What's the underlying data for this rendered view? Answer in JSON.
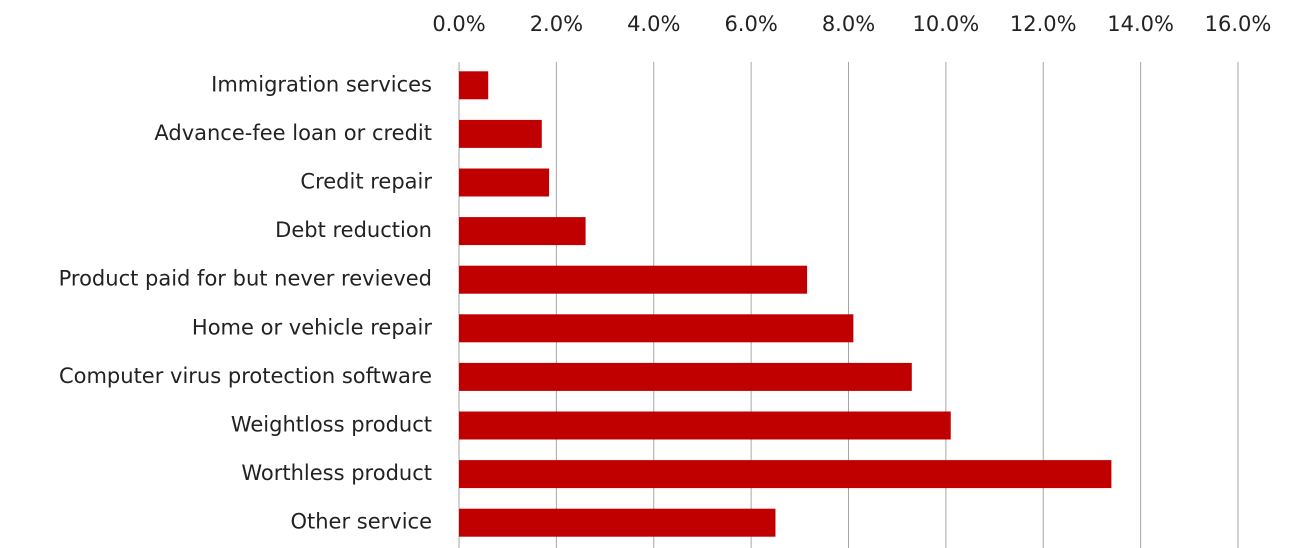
{
  "chart_data": {
    "type": "bar",
    "orientation": "horizontal",
    "categories": [
      "Immigration services",
      "Advance-fee loan or credit",
      "Credit repair",
      "Debt reduction",
      "Product paid for but never revieved",
      "Home or vehicle repair",
      "Computer virus protection software",
      "Weightloss product",
      "Worthless product",
      "Other service"
    ],
    "values": [
      0.6,
      1.7,
      1.85,
      2.6,
      7.15,
      8.1,
      9.3,
      10.1,
      13.4,
      6.5
    ],
    "color": "#c00000",
    "xlim": [
      0,
      16
    ],
    "xticks": [
      {
        "value": 0,
        "label": "0.0%"
      },
      {
        "value": 2,
        "label": "2.0%"
      },
      {
        "value": 4,
        "label": "4.0%"
      },
      {
        "value": 6,
        "label": "6.0%"
      },
      {
        "value": 8,
        "label": "8.0%"
      },
      {
        "value": 10,
        "label": "10.0%"
      },
      {
        "value": 12,
        "label": "12.0%"
      },
      {
        "value": 14,
        "label": "14.0%"
      },
      {
        "value": 16,
        "label": "16.0%"
      }
    ],
    "grid": true
  }
}
